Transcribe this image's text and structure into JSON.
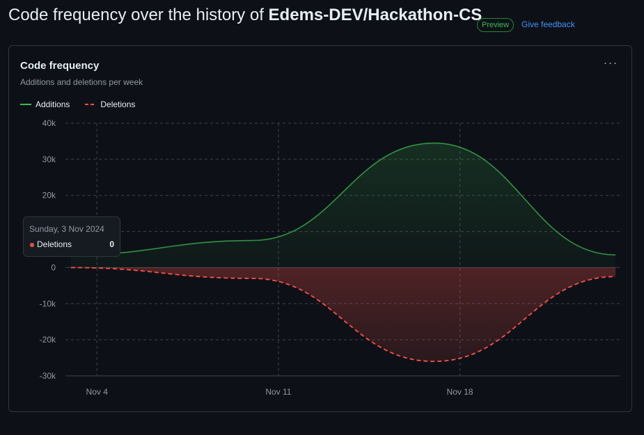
{
  "page": {
    "title_prefix": "Code frequency over the history of",
    "repo": "Edems-DEV/Hackathon-CS",
    "badge": "Preview",
    "feedback": "Give feedback"
  },
  "card": {
    "title": "Code frequency",
    "subtitle": "Additions and deletions per week",
    "more_label": "···"
  },
  "legend": {
    "additions": "Additions",
    "deletions": "Deletions"
  },
  "tooltip": {
    "date": "Sunday, 3 Nov 2024",
    "label": "Deletions",
    "value": "0"
  },
  "colors": {
    "additions": "#3fb950",
    "deletions": "#f85149",
    "grid": "#3d444d",
    "axis_text": "#9198a1"
  },
  "chart_data": {
    "type": "area",
    "title": "Code frequency",
    "subtitle": "Additions and deletions per week",
    "x": [
      "2024-11-03",
      "2024-11-10",
      "2024-11-17",
      "2024-11-24"
    ],
    "x_tick_labels": [
      "Nov 4",
      "Nov 11",
      "Nov 18"
    ],
    "y_tick_labels": [
      "40k",
      "30k",
      "20k",
      "10k",
      "0",
      "-10k",
      "-20k",
      "-30k"
    ],
    "ylim": [
      -30000,
      40000
    ],
    "grid": true,
    "legend_position": "top-left",
    "series": [
      {
        "name": "Additions",
        "values": [
          3500,
          7500,
          34500,
          3500
        ]
      },
      {
        "name": "Deletions",
        "values": [
          0,
          -3000,
          -26000,
          -2500
        ]
      }
    ]
  }
}
